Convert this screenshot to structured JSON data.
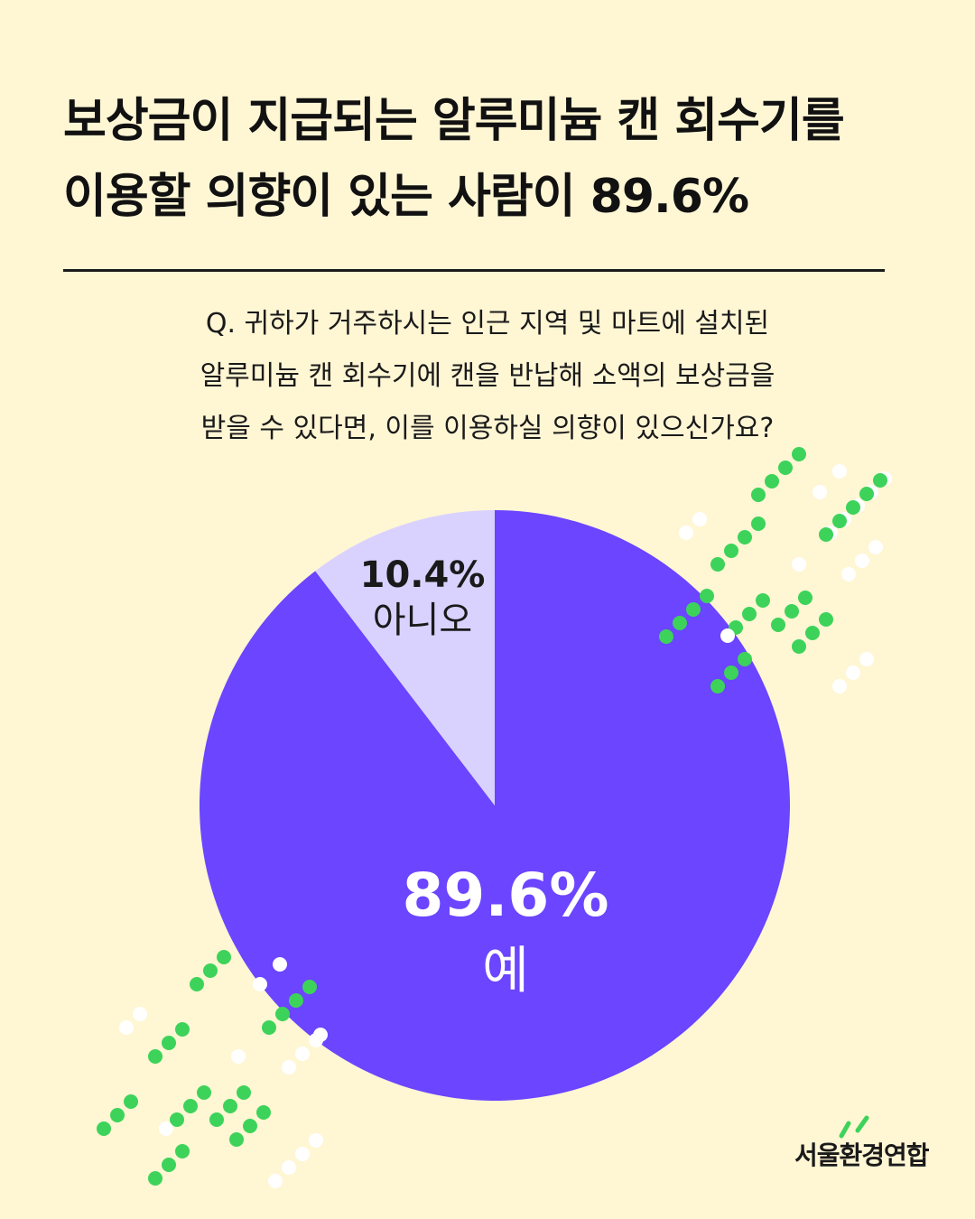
{
  "headline": {
    "line1": "보상금이 지급되는 알루미늄 캔 회수기를",
    "line2": "이용할 의향이 있는 사람이 89.6%"
  },
  "question": {
    "line1": "Q. 귀하가 거주하시는 인근 지역 및 마트에 설치된",
    "line2": "알루미늄 캔 회수기에 캔을 반납해 소액의 보상금을",
    "line3": "받을 수 있다면, 이를 이용하실 의향이 있으신가요?"
  },
  "chart_data": {
    "type": "pie",
    "slices": [
      {
        "label": "예",
        "value": 89.6,
        "display": "89.6%",
        "color": "#6B45FF"
      },
      {
        "label": "아니오",
        "value": 10.4,
        "display": "10.4%",
        "color": "#D9D2FF"
      }
    ]
  },
  "logo": {
    "text": "서울환경연합",
    "accent_color": "#3DD35A"
  },
  "decoration": {
    "dot_green": "#3DD35A",
    "dot_white": "#FFFFFF"
  }
}
